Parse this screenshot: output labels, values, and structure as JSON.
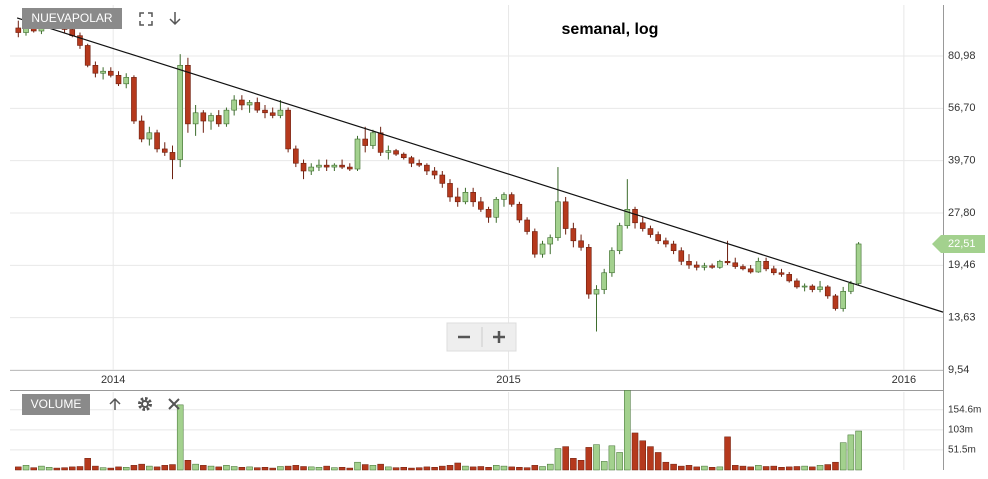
{
  "chart_data": {
    "type": "candlestick",
    "name": "NUEVAPOLAR",
    "title": "semanal, log",
    "log_scale": true,
    "grid": true,
    "up_color": "#a3d18e",
    "down_color": "#b5391d",
    "xlim": [
      2013.739,
      2016.099
    ],
    "xticks": [
      2014,
      2015,
      2016
    ],
    "ylim": [
      9.54,
      114.6
    ],
    "yticks": [
      {
        "value": 9.54,
        "label": "9,54"
      },
      {
        "value": 13.63,
        "label": "13,63"
      },
      {
        "value": 19.46,
        "label": "19,46"
      },
      {
        "value": 27.8,
        "label": "27,80"
      },
      {
        "value": 39.7,
        "label": "39,70"
      },
      {
        "value": 56.7,
        "label": "56,70"
      },
      {
        "value": 80.98,
        "label": "80,98"
      }
    ],
    "x": [
      2013.76,
      2013.7795,
      2013.799,
      2013.8185,
      2013.838,
      2013.8575,
      2013.877,
      2013.8965,
      2013.916,
      2013.9355,
      2013.955,
      2013.9745,
      2013.994,
      2014.0135,
      2014.033,
      2014.0525,
      2014.072,
      2014.0915,
      2014.111,
      2014.1305,
      2014.15,
      2014.1695,
      2014.189,
      2014.2085,
      2014.228,
      2014.2475,
      2014.267,
      2014.2865,
      2014.306,
      2014.3255,
      2014.345,
      2014.3645,
      2014.384,
      2014.4035,
      2014.423,
      2014.4425,
      2014.462,
      2014.4815,
      2014.501,
      2014.5205,
      2014.54,
      2014.5595,
      2014.579,
      2014.5985,
      2014.618,
      2014.6375,
      2014.657,
      2014.6765,
      2014.696,
      2014.7155,
      2014.735,
      2014.7545,
      2014.774,
      2014.7935,
      2014.813,
      2014.8325,
      2014.852,
      2014.8715,
      2014.891,
      2014.9105,
      2014.93,
      2014.9495,
      2014.969,
      2014.9885,
      2015.008,
      2015.0275,
      2015.047,
      2015.0665,
      2015.086,
      2015.1055,
      2015.125,
      2015.1445,
      2015.164,
      2015.1835,
      2015.203,
      2015.2225,
      2015.242,
      2015.2615,
      2015.281,
      2015.3005,
      2015.32,
      2015.3395,
      2015.359,
      2015.3785,
      2015.398,
      2015.4175,
      2015.437,
      2015.4565,
      2015.476,
      2015.4955,
      2015.515,
      2015.5345,
      2015.554,
      2015.5735,
      2015.593,
      2015.6125,
      2015.632,
      2015.6515,
      2015.671,
      2015.6905,
      2015.71,
      2015.7295,
      2015.749,
      2015.7685,
      2015.788,
      2015.8075,
      2015.827,
      2015.8465,
      2015.866,
      2015.8855
    ],
    "open": [
      98,
      95,
      98,
      96,
      101,
      104,
      100,
      97,
      93,
      87,
      76,
      72,
      73,
      71,
      67,
      70,
      52,
      46,
      48,
      43,
      42,
      40,
      76,
      51,
      55,
      52,
      54,
      51,
      56,
      60,
      58,
      59,
      56,
      55,
      54,
      56,
      43,
      39,
      37,
      38,
      38.5,
      38,
      38.5,
      38,
      37.5,
      46,
      44,
      48,
      42,
      42.5,
      41.5,
      40.5,
      39,
      38.5,
      37,
      36,
      34,
      31,
      30,
      32,
      30,
      28.5,
      27,
      30.5,
      31.5,
      29.5,
      26.5,
      24.5,
      21,
      22.5,
      23.5,
      30,
      25,
      23,
      22,
      16,
      16.5,
      18.5,
      21.5,
      25.5,
      28.5,
      26,
      25,
      24,
      23,
      22.5,
      21.5,
      20,
      19.5,
      19.2,
      19.4,
      19.2,
      20,
      19.8,
      19.3,
      19,
      18.6,
      20,
      19,
      18.5,
      18.3,
      17.5,
      16.8,
      16.9,
      16.5,
      16.8,
      15.8,
      14.5,
      16.3,
      17.2
    ],
    "high": [
      103,
      100,
      101,
      102,
      106,
      106,
      101,
      99,
      95,
      88,
      78,
      75,
      75,
      73,
      72,
      71,
      54,
      50,
      49,
      45,
      44,
      82,
      80,
      58,
      56,
      55,
      56,
      57,
      62,
      62,
      60,
      61,
      58,
      57,
      60,
      57,
      44,
      40,
      39,
      40,
      40,
      39,
      40,
      39,
      47,
      50,
      49,
      50,
      44,
      43,
      42,
      41,
      40,
      39,
      38,
      37,
      35,
      33,
      33,
      33,
      31,
      29,
      31,
      32,
      32,
      30,
      27,
      25,
      23,
      24,
      38,
      31,
      26,
      24,
      22.5,
      17,
      19,
      22,
      26,
      35,
      29,
      27,
      25.5,
      24.5,
      23.5,
      23,
      22,
      21,
      20,
      19.8,
      19.7,
      20.2,
      23,
      20.5,
      19.6,
      19.5,
      20.5,
      20.5,
      19.4,
      19,
      18.6,
      17.8,
      17.2,
      17.1,
      17.5,
      17,
      16,
      16.8,
      17.5,
      22.8
    ],
    "low": [
      92,
      93,
      95,
      94,
      99,
      99,
      95,
      92,
      85,
      75,
      70,
      69,
      70,
      66,
      65,
      51,
      45,
      44,
      42,
      41,
      35,
      38,
      48,
      47,
      48,
      49,
      50,
      50,
      54,
      56,
      55,
      55,
      53,
      53,
      53,
      42,
      38,
      35,
      36,
      37,
      37,
      37,
      37.5,
      37,
      37,
      42,
      43,
      41,
      40,
      41,
      40,
      38,
      38,
      36,
      35,
      33,
      30,
      29,
      29.5,
      29,
      28,
      26,
      26,
      29,
      29,
      26,
      24,
      20.5,
      20.5,
      21,
      23,
      24,
      22,
      21.5,
      15.5,
      12.4,
      16,
      18,
      21,
      25,
      25,
      24.5,
      23.5,
      22.5,
      22,
      21,
      19.5,
      19,
      18.8,
      18.8,
      19,
      19,
      19.5,
      19,
      18.8,
      18.4,
      18.5,
      18.7,
      18.2,
      18,
      17.3,
      16.6,
      16.3,
      16.2,
      16.2,
      15.5,
      14.3,
      14.2,
      16,
      17
    ],
    "close": [
      95,
      98,
      96,
      101,
      104,
      100,
      97,
      93,
      87,
      76,
      72,
      73,
      71,
      67,
      70,
      52,
      46,
      48,
      43,
      42,
      40,
      76,
      51,
      55,
      52,
      54,
      51,
      56,
      60,
      58,
      59,
      56,
      55,
      54,
      56,
      43,
      39,
      37,
      38,
      38.5,
      38,
      38.5,
      38,
      37.5,
      46,
      44,
      48,
      42,
      42.5,
      41.5,
      40.5,
      39,
      38.5,
      37,
      36,
      34,
      31,
      30,
      32,
      30,
      28.5,
      27,
      30.5,
      31.5,
      29.5,
      26.5,
      24.5,
      21,
      22.5,
      23.5,
      30,
      25,
      23,
      22,
      16,
      16.5,
      18.5,
      21.5,
      25.5,
      28.5,
      26,
      25,
      24,
      23,
      22.5,
      21.5,
      20,
      19.5,
      19.2,
      19.4,
      19.2,
      20,
      19.8,
      19.3,
      19,
      18.6,
      20,
      19,
      18.5,
      18.3,
      17.5,
      16.8,
      16.9,
      16.5,
      16.8,
      15.8,
      14.5,
      16.3,
      17.2,
      22.51
    ],
    "last_price": {
      "value": 22.51,
      "label": "22,51"
    },
    "trendline": {
      "x": [
        2013.757,
        2016.099
      ],
      "values": [
        104.9,
        14.15
      ]
    },
    "volume": {
      "name": "VOLUME",
      "ylim": [
        0,
        200
      ],
      "yticks": [
        {
          "value": 51.5,
          "label": "51.5m"
        },
        {
          "value": 103,
          "label": "103m"
        },
        {
          "value": 154.6,
          "label": "154.6m"
        }
      ],
      "values": [
        8,
        12,
        6,
        10,
        7,
        5,
        6,
        8,
        9,
        30,
        10,
        6,
        5,
        8,
        7,
        12,
        15,
        10,
        8,
        12,
        14,
        167,
        25,
        15,
        12,
        10,
        8,
        12,
        9,
        7,
        8,
        6,
        7,
        5,
        9,
        10,
        12,
        9,
        8,
        7,
        10,
        6,
        7,
        5,
        20,
        14,
        12,
        15,
        8,
        6,
        7,
        5,
        6,
        8,
        7,
        10,
        12,
        18,
        10,
        8,
        9,
        7,
        12,
        10,
        8,
        7,
        6,
        12,
        9,
        15,
        55,
        60,
        30,
        25,
        58,
        65,
        22,
        62,
        45,
        204,
        95,
        75,
        60,
        45,
        20,
        15,
        10,
        12,
        8,
        10,
        7,
        8,
        85,
        12,
        10,
        8,
        12,
        9,
        10,
        7,
        8,
        9,
        10,
        8,
        12,
        14,
        20,
        70,
        90,
        100
      ]
    }
  }
}
